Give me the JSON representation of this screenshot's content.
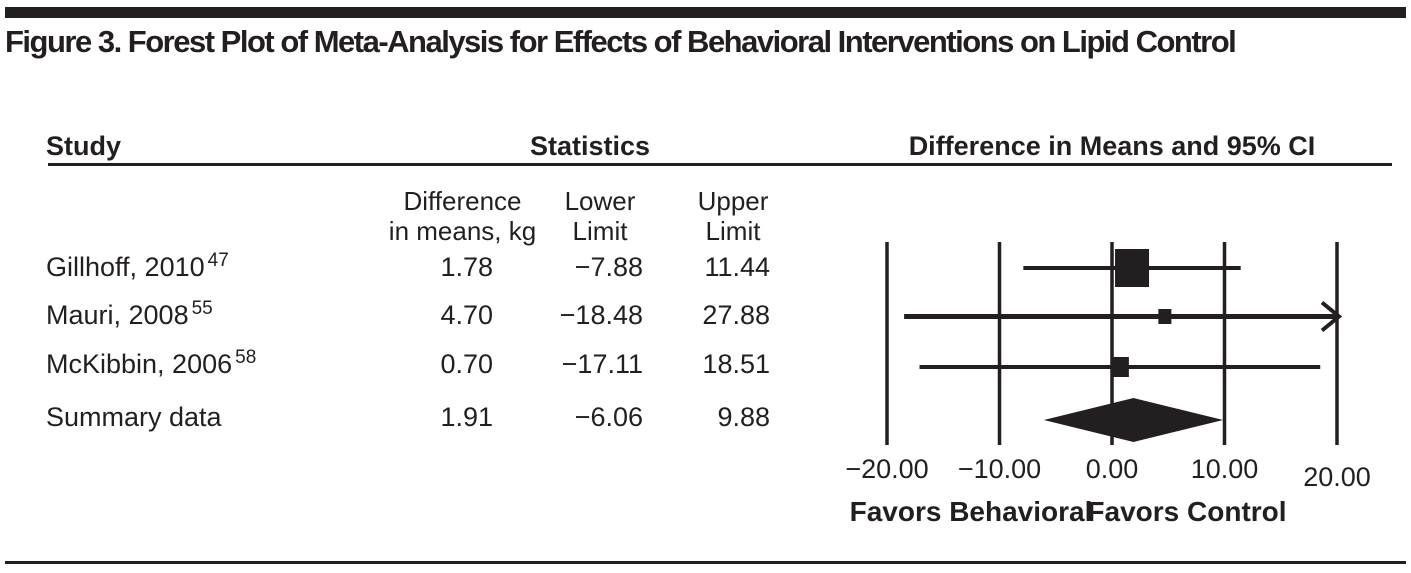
{
  "figure": {
    "title": "Figure 3. Forest Plot of Meta-Analysis for Effects of Behavioral Interventions on Lipid Control"
  },
  "table": {
    "header": {
      "study": "Study",
      "statistics": "Statistics",
      "ci": "Difference in Means and 95% CI"
    },
    "subheader": {
      "diff1": "Difference",
      "diff2": "in means, kg",
      "lower1": "Lower",
      "lower2": "Limit",
      "upper1": "Upper",
      "upper2": "Limit"
    },
    "rows": [
      {
        "study": "Gillhoff, 2010",
        "ref": "47",
        "diff": "1.78",
        "lower": "−7.88",
        "upper": "11.44"
      },
      {
        "study": "Mauri, 2008",
        "ref": "55",
        "diff": "4.70",
        "lower": "−18.48",
        "upper": "27.88"
      },
      {
        "study": "McKibbin, 2006",
        "ref": "58",
        "diff": "0.70",
        "lower": "−17.11",
        "upper": "18.51"
      },
      {
        "study": "Summary data",
        "ref": "",
        "diff": "1.91",
        "lower": "−6.06",
        "upper": "9.88"
      }
    ]
  },
  "chart_data": {
    "type": "forest",
    "title": "Difference in Means and 95% CI",
    "unit": "kg",
    "axis": {
      "min": -20,
      "max": 20,
      "ticks": [
        -20,
        -10,
        0,
        10,
        20
      ],
      "tick_labels": [
        "−20.00",
        "−10.00",
        "0.00",
        "10.00",
        "20.00"
      ],
      "xlabel_left": "Favors Behavioral",
      "xlabel_right": "Favors Control",
      "grid": true
    },
    "studies": [
      {
        "label": "Gillhoff, 2010",
        "ref": "47",
        "mean": 1.78,
        "lower": -7.88,
        "upper": 11.44,
        "weight_rel": 1.0,
        "clipped_right": false
      },
      {
        "label": "Mauri, 2008",
        "ref": "55",
        "mean": 4.7,
        "lower": -18.48,
        "upper": 27.88,
        "weight_rel": 0.38,
        "clipped_right": true
      },
      {
        "label": "McKibbin, 2006",
        "ref": "58",
        "mean": 0.7,
        "lower": -17.11,
        "upper": 18.51,
        "weight_rel": 0.53,
        "clipped_right": false
      }
    ],
    "summary": {
      "label": "Summary data",
      "mean": 1.91,
      "lower": -6.06,
      "upper": 9.88
    }
  },
  "colors": {
    "ink": "#231f20",
    "background": "#ffffff"
  }
}
